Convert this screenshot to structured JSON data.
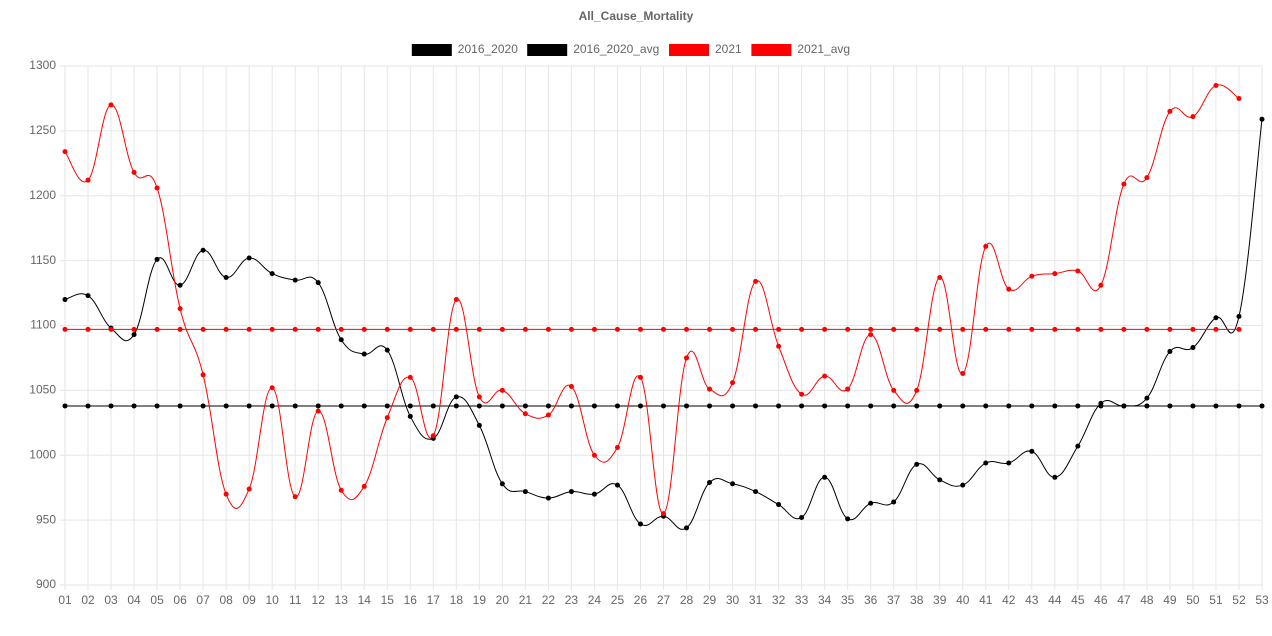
{
  "chart_data": {
    "type": "line",
    "title": "All_Cause_Mortality",
    "categories": [
      "01",
      "02",
      "03",
      "04",
      "05",
      "06",
      "07",
      "08",
      "09",
      "10",
      "11",
      "12",
      "13",
      "14",
      "15",
      "16",
      "17",
      "18",
      "19",
      "20",
      "21",
      "22",
      "23",
      "24",
      "25",
      "26",
      "27",
      "28",
      "29",
      "30",
      "31",
      "32",
      "33",
      "34",
      "35",
      "36",
      "37",
      "38",
      "39",
      "40",
      "41",
      "42",
      "43",
      "44",
      "45",
      "46",
      "47",
      "48",
      "49",
      "50",
      "51",
      "52",
      "53"
    ],
    "series": [
      {
        "name": "2016_2020",
        "color": "#000000",
        "values": [
          1120,
          1123,
          1098,
          1093,
          1151,
          1131,
          1158,
          1137,
          1152,
          1140,
          1135,
          1133,
          1089,
          1078,
          1081,
          1030,
          1013,
          1045,
          1023,
          978,
          972,
          967,
          972,
          970,
          977,
          947,
          953,
          944,
          979,
          978,
          972,
          962,
          952,
          983,
          951,
          963,
          964,
          993,
          981,
          977,
          994,
          994,
          1003,
          983,
          1007,
          1040,
          1038,
          1044,
          1080,
          1083,
          1106,
          1107,
          1259
        ]
      },
      {
        "name": "2016_2020_avg",
        "color": "#000000",
        "values": [
          1038,
          1038,
          1038,
          1038,
          1038,
          1038,
          1038,
          1038,
          1038,
          1038,
          1038,
          1038,
          1038,
          1038,
          1038,
          1038,
          1038,
          1038,
          1038,
          1038,
          1038,
          1038,
          1038,
          1038,
          1038,
          1038,
          1038,
          1038,
          1038,
          1038,
          1038,
          1038,
          1038,
          1038,
          1038,
          1038,
          1038,
          1038,
          1038,
          1038,
          1038,
          1038,
          1038,
          1038,
          1038,
          1038,
          1038,
          1038,
          1038,
          1038,
          1038,
          1038,
          1038
        ]
      },
      {
        "name": "2021",
        "color": "#ff0000",
        "values": [
          1234,
          1212,
          1270,
          1218,
          1206,
          1113,
          1062,
          970,
          974,
          1052,
          968,
          1034,
          973,
          976,
          1029,
          1060,
          1015,
          1120,
          1045,
          1050,
          1032,
          1031,
          1053,
          1000,
          1006,
          1060,
          955,
          1075,
          1051,
          1056,
          1134,
          1084,
          1047,
          1061,
          1051,
          1093,
          1050,
          1050,
          1137,
          1063,
          1161,
          1128,
          1138,
          1140,
          1142,
          1131,
          1209,
          1214,
          1265,
          1261,
          1285,
          1275,
          null
        ]
      },
      {
        "name": "2021_avg",
        "color": "#ff0000",
        "values": [
          1097,
          1097,
          1097,
          1097,
          1097,
          1097,
          1097,
          1097,
          1097,
          1097,
          1097,
          1097,
          1097,
          1097,
          1097,
          1097,
          1097,
          1097,
          1097,
          1097,
          1097,
          1097,
          1097,
          1097,
          1097,
          1097,
          1097,
          1097,
          1097,
          1097,
          1097,
          1097,
          1097,
          1097,
          1097,
          1097,
          1097,
          1097,
          1097,
          1097,
          1097,
          1097,
          1097,
          1097,
          1097,
          1097,
          1097,
          1097,
          1097,
          1097,
          1097,
          1097,
          null
        ]
      }
    ],
    "ylim": [
      900,
      1300
    ],
    "yticks": [
      900,
      950,
      1000,
      1050,
      1100,
      1150,
      1200,
      1250,
      1300
    ],
    "grid": true
  }
}
